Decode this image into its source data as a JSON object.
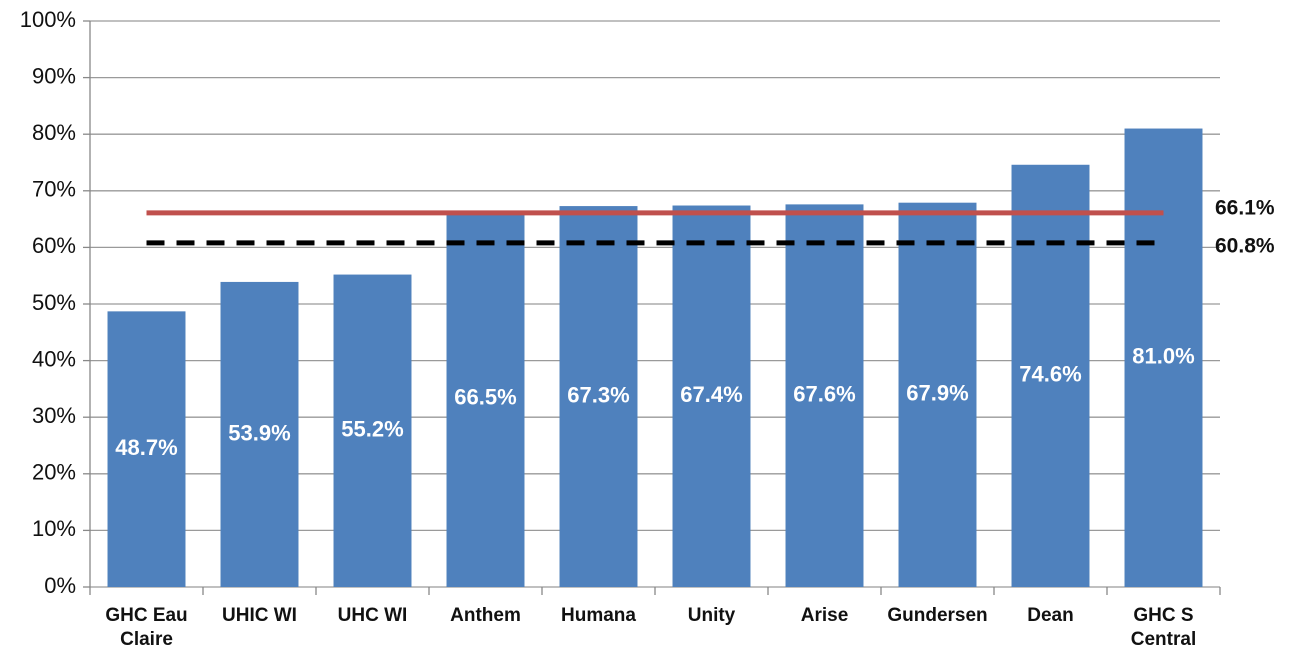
{
  "chart_data": {
    "type": "bar",
    "categories": [
      "GHC Eau Claire",
      "UHIC WI",
      "UHC WI",
      "Anthem",
      "Humana",
      "Unity",
      "Arise",
      "Gundersen",
      "Dean",
      "GHC S Central"
    ],
    "values": [
      48.7,
      53.9,
      55.2,
      66.5,
      67.3,
      67.4,
      67.6,
      67.9,
      74.6,
      81.0
    ],
    "value_labels": [
      "48.7%",
      "53.9%",
      "55.2%",
      "66.5%",
      "67.3%",
      "67.4%",
      "67.6%",
      "67.9%",
      "74.6%",
      "81.0%"
    ],
    "color": "#4f81bd",
    "ylim": [
      0,
      100
    ],
    "yticks": [
      {
        "value": 0,
        "label": "0%"
      },
      {
        "value": 10,
        "label": "10%"
      },
      {
        "value": 20,
        "label": "20%"
      },
      {
        "value": 30,
        "label": "30%"
      },
      {
        "value": 40,
        "label": "40%"
      },
      {
        "value": 50,
        "label": "50%"
      },
      {
        "value": 60,
        "label": "60%"
      },
      {
        "value": 70,
        "label": "70%"
      },
      {
        "value": 80,
        "label": "80%"
      },
      {
        "value": 90,
        "label": "90%"
      },
      {
        "value": 100,
        "label": "100%"
      }
    ],
    "grid": true,
    "reference_lines": [
      {
        "value": 66.1,
        "label": "66.1%",
        "color": "#c0504d",
        "style": "solid"
      },
      {
        "value": 60.8,
        "label": "60.8%",
        "color": "#000000",
        "style": "dashed"
      }
    ]
  }
}
